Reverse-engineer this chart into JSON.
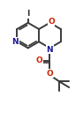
{
  "bg_color": "#ffffff",
  "bond_color": "#3a3a3a",
  "bond_width": 1.4,
  "figsize": [
    0.94,
    1.36
  ],
  "dpi": 100,
  "xlim": [
    -1.2,
    1.2
  ],
  "ylim": [
    -2.2,
    1.8
  ]
}
